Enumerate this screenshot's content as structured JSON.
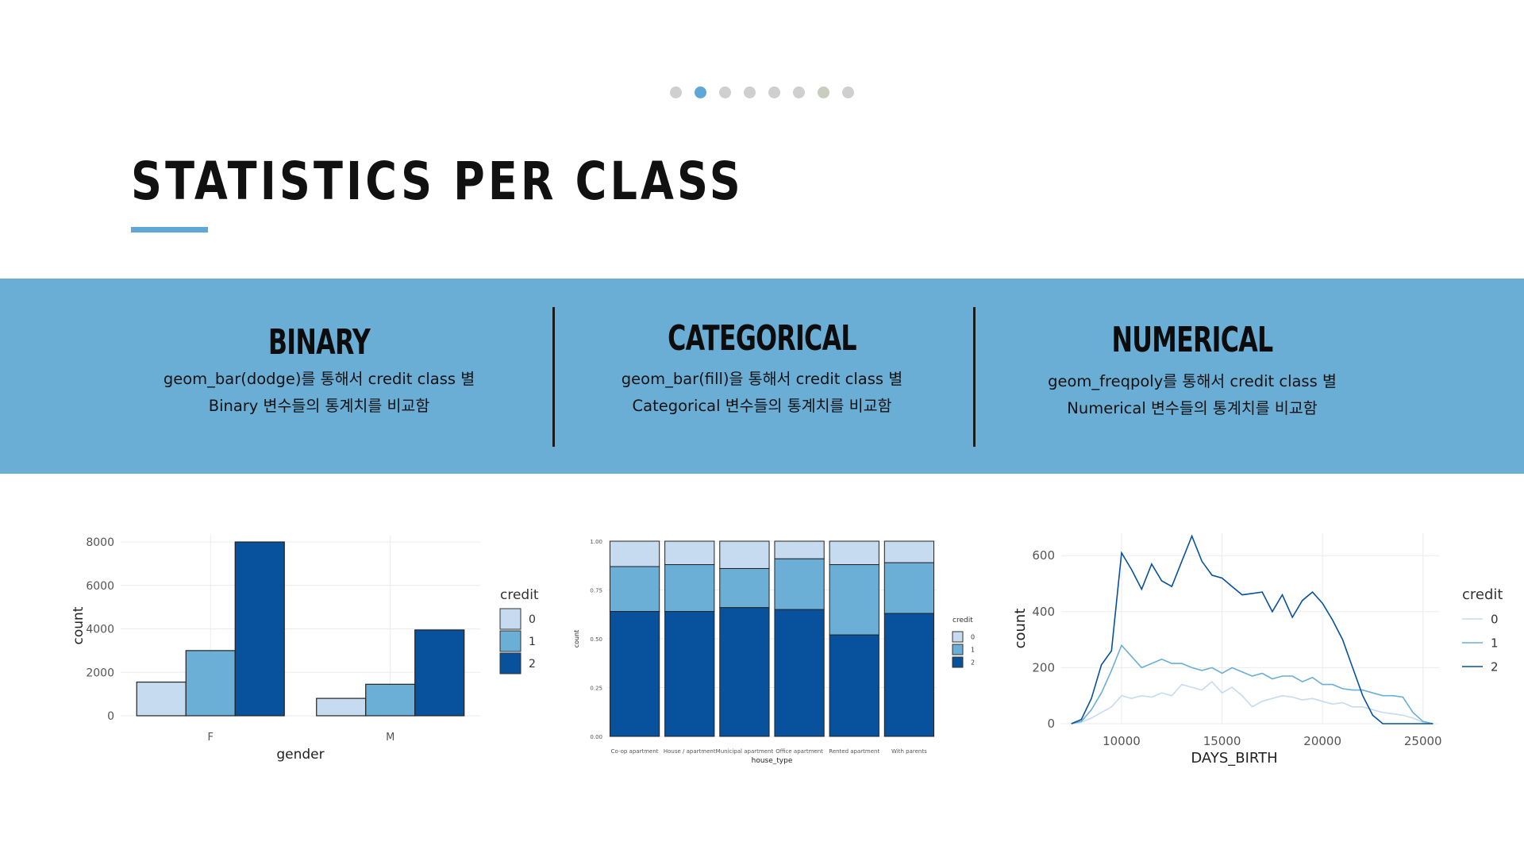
{
  "slide": {
    "title": "STATISTICS PER CLASS",
    "dot_count": 8,
    "active_dot": 1
  },
  "columns": [
    {
      "heading": "BINARY",
      "line1": "geom_bar(dodge)를 통해서 credit class 별",
      "line2": "Binary 변수들의 통계치를 비교함"
    },
    {
      "heading": "CATEGORICAL",
      "line1": "geom_bar(fill)을 통해서 credit class 별",
      "line2": "Categorical 변수들의 통계치를 비교함"
    },
    {
      "heading": "NUMERICAL",
      "line1": "geom_freqpoly를 통해서 credit class 별",
      "line2": "Numerical 변수들의 통계치를 비교함"
    }
  ],
  "colors": {
    "accent": "#6aaed6",
    "credit0": "#c6dbef",
    "credit1": "#6baed6",
    "credit2": "#08519c"
  },
  "chart_data": [
    {
      "type": "bar",
      "position": "dodge",
      "xlabel": "gender",
      "ylabel": "count",
      "categories": [
        "F",
        "M"
      ],
      "ylim": [
        0,
        8000
      ],
      "yticks": [
        0,
        2000,
        4000,
        6000,
        8000
      ],
      "legend_title": "credit",
      "legend_placement": "right",
      "series": [
        {
          "name": "0",
          "values": [
            1550,
            800
          ]
        },
        {
          "name": "1",
          "values": [
            3000,
            1450
          ]
        },
        {
          "name": "2",
          "values": [
            8000,
            3950
          ]
        }
      ]
    },
    {
      "type": "bar",
      "position": "fill",
      "xlabel": "house_type",
      "ylabel": "count",
      "categories": [
        "Co-op apartment",
        "House / apartment",
        "Municipal apartment",
        "Office apartment",
        "Rented apartment",
        "With parents"
      ],
      "ylim": [
        0,
        1
      ],
      "yticks": [
        "0.00",
        "0.25",
        "0.50",
        "0.75",
        "1.00"
      ],
      "legend_title": "credit",
      "legend_placement": "right",
      "series": [
        {
          "name": "0",
          "values": [
            0.13,
            0.12,
            0.14,
            0.09,
            0.12,
            0.11
          ]
        },
        {
          "name": "1",
          "values": [
            0.23,
            0.24,
            0.2,
            0.26,
            0.36,
            0.26
          ]
        },
        {
          "name": "2",
          "values": [
            0.64,
            0.64,
            0.66,
            0.65,
            0.52,
            0.63
          ]
        }
      ]
    },
    {
      "type": "line",
      "xlabel": "DAYS_BIRTH",
      "ylabel": "count",
      "xlim": [
        7000,
        25800
      ],
      "ylim": [
        0,
        680
      ],
      "xticks": [
        10000,
        15000,
        20000,
        25000
      ],
      "yticks": [
        0,
        200,
        400,
        600
      ],
      "legend_title": "credit",
      "legend_placement": "right",
      "x": [
        7500,
        8000,
        8500,
        9000,
        9500,
        10000,
        10500,
        11000,
        11500,
        12000,
        12500,
        13000,
        13500,
        14000,
        14500,
        15000,
        15500,
        16000,
        16500,
        17000,
        17500,
        18000,
        18500,
        19000,
        19500,
        20000,
        20500,
        21000,
        21500,
        22000,
        22500,
        23000,
        23500,
        24000,
        24500,
        25000,
        25500
      ],
      "series": [
        {
          "name": "0",
          "values": [
            0,
            5,
            20,
            40,
            60,
            100,
            90,
            100,
            95,
            110,
            100,
            140,
            130,
            120,
            150,
            110,
            130,
            100,
            60,
            80,
            90,
            100,
            95,
            85,
            90,
            80,
            70,
            75,
            60,
            60,
            50,
            40,
            35,
            30,
            20,
            5,
            0
          ]
        },
        {
          "name": "1",
          "values": [
            0,
            8,
            50,
            110,
            190,
            280,
            240,
            200,
            215,
            230,
            215,
            215,
            200,
            190,
            200,
            180,
            200,
            185,
            170,
            180,
            160,
            170,
            170,
            150,
            165,
            140,
            140,
            125,
            120,
            120,
            110,
            100,
            100,
            95,
            40,
            8,
            0
          ]
        },
        {
          "name": "2",
          "values": [
            0,
            15,
            90,
            210,
            260,
            610,
            550,
            480,
            570,
            510,
            490,
            580,
            670,
            580,
            530,
            520,
            490,
            460,
            465,
            470,
            400,
            460,
            380,
            440,
            470,
            430,
            370,
            300,
            200,
            100,
            30,
            0,
            0,
            0,
            0,
            0,
            0
          ]
        }
      ]
    }
  ]
}
